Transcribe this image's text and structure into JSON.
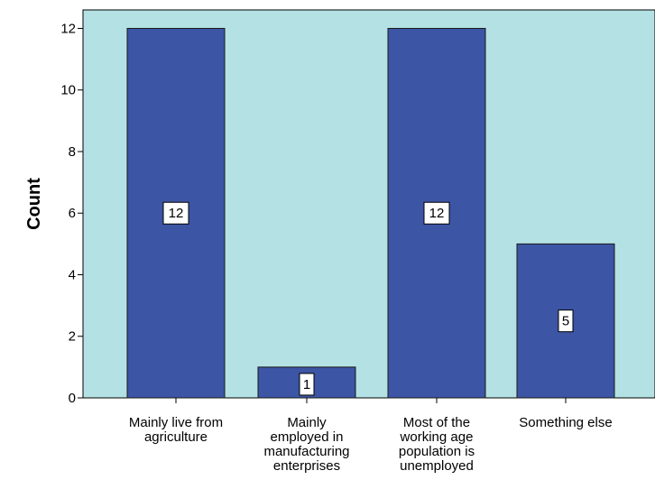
{
  "chart_data": {
    "type": "bar",
    "categories": [
      [
        "Mainly live from",
        "agriculture"
      ],
      [
        "Mainly",
        "employed in",
        "manufacturing",
        "enterprises"
      ],
      [
        "Most of the",
        "working age",
        "population is",
        "unemployed"
      ],
      [
        "Something else"
      ]
    ],
    "values": [
      12,
      1,
      12,
      5
    ],
    "data_labels": [
      "12",
      "1",
      "12",
      "5"
    ],
    "xlabel": "",
    "ylabel": "Count",
    "ylim": [
      0,
      12.6
    ],
    "yticks": [
      0,
      2,
      4,
      6,
      8,
      10,
      12
    ],
    "grid": false,
    "colors": {
      "plot_background": "#b4e2e4",
      "bar_fill": "#3c55a4",
      "bar_stroke": "#1a1a1a",
      "axis": "#000000",
      "label_box": "#ffffff"
    }
  }
}
